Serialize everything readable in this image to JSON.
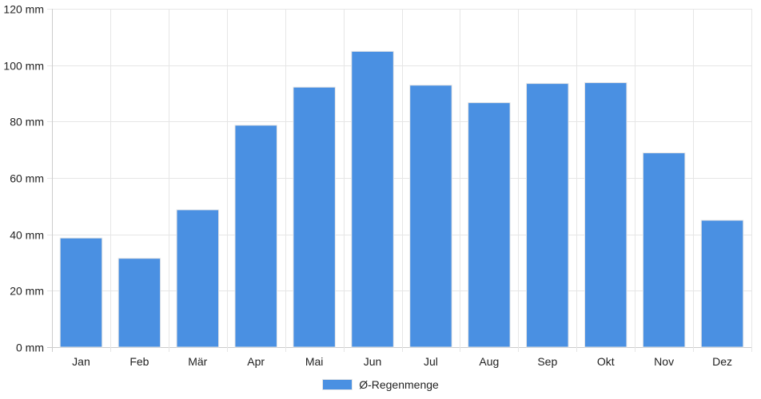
{
  "chart_data": {
    "type": "bar",
    "categories": [
      "Jan",
      "Feb",
      "Mär",
      "Apr",
      "Mai",
      "Jun",
      "Jul",
      "Aug",
      "Sep",
      "Okt",
      "Nov",
      "Dez"
    ],
    "series": [
      {
        "name": "Ø-Regenmenge",
        "values": [
          38.7,
          31.5,
          48.7,
          78.7,
          92.2,
          104.9,
          92.9,
          86.7,
          93.5,
          93.8,
          68.9,
          45.0
        ]
      }
    ],
    "y_unit": "mm",
    "ylim": [
      0,
      120
    ],
    "y_ticks": [
      0,
      20,
      40,
      60,
      80,
      100,
      120
    ],
    "y_tick_labels": [
      "0 mm",
      "20 mm",
      "40 mm",
      "60 mm",
      "80 mm",
      "100 mm",
      "120 mm"
    ],
    "grid": true,
    "legend_position": "bottom-center",
    "bar_color": "#4a90e2",
    "bar_border_color": "#e6e6e6",
    "grid_color": "#e6e6e6"
  }
}
